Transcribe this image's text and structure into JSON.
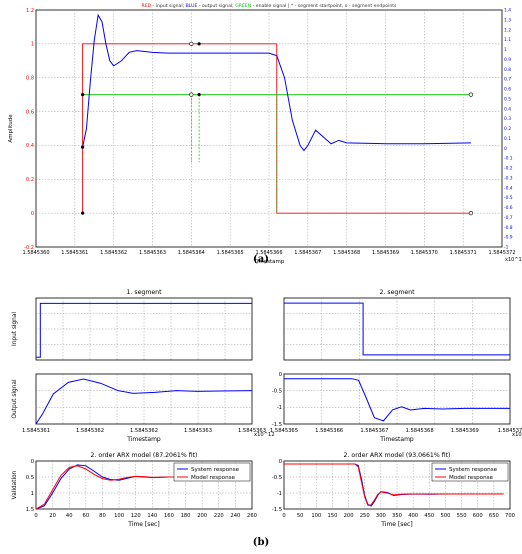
{
  "figure": {
    "label_a": "(a)",
    "label_b": "(b)"
  },
  "chart_data": [
    {
      "id": "a",
      "type": "line",
      "title": "RED - input signal; BLUE - output signal; GREEN - enable signal | * - segment startpoint, o - segment endpoints",
      "title_parts": [
        {
          "text": "RED",
          "color": "#ff0000"
        },
        {
          "text": " - input signal; ",
          "color": "#333333"
        },
        {
          "text": "BLUE",
          "color": "#0000ff"
        },
        {
          "text": " - output signal; ",
          "color": "#333333"
        },
        {
          "text": "GREEN",
          "color": "#00c000"
        },
        {
          "text": " - enable signal | * - segment startpoint, o - segment endpoints",
          "color": "#333333"
        }
      ],
      "xlabel": "Timestamp",
      "ylabel": "Amplitude",
      "x_exponent": "x10^12",
      "xlim": [
        1.584536,
        1.5845372
      ],
      "ylim": [
        -0.2,
        1.2
      ],
      "ylim_right": [
        -1.0,
        1.4
      ],
      "xticks": [
        "1.5845360",
        "1.5845361",
        "1.5845362",
        "1.5845363",
        "1.5845364",
        "1.5845365",
        "1.5845366",
        "1.5845367",
        "1.5845368",
        "1.5845369",
        "1.5845370",
        "1.5845371",
        "1.5845372"
      ],
      "yticks_left": [
        "-0.2",
        "0",
        "0.2",
        "0.4",
        "0.6",
        "0.8",
        "1",
        "1.2"
      ],
      "yticks_right": [
        "-1",
        "-0.9",
        "-0.8",
        "-0.7",
        "-0.6",
        "-0.5",
        "-0.4",
        "-0.3",
        "-0.2",
        "-0.1",
        "0",
        "0.1",
        "0.2",
        "0.3",
        "0.4",
        "0.5",
        "0.6",
        "0.7",
        "0.8",
        "0.9",
        "1",
        "1.1",
        "1.2",
        "1.3",
        "1.4"
      ],
      "grid": true,
      "series": [
        {
          "color": "#ff0000",
          "x": [
            1.58453612,
            1.58453612,
            1.58453662,
            1.58453662,
            1.58453712
          ],
          "y": [
            0,
            1,
            1,
            0,
            0
          ]
        },
        {
          "color": "#00c000",
          "x": [
            1.58453612,
            1.58453712
          ],
          "y": [
            0.7,
            0.7
          ]
        },
        {
          "color": "#0000ff",
          "x": [
            1.58453612,
            1.58453613,
            1.58453614,
            1.58453615,
            1.58453616,
            1.58453617,
            1.58453618,
            1.58453619,
            1.5845362,
            1.58453622,
            1.58453624,
            1.58453626,
            1.58453628,
            1.5845363,
            1.58453634,
            1.5845364,
            1.5845365,
            1.5845366,
            1.58453662,
            1.58453664,
            1.58453666,
            1.58453668,
            1.58453669,
            1.5845367,
            1.58453672,
            1.58453674,
            1.58453676,
            1.58453678,
            1.5845368,
            1.5845369,
            1.584537,
            1.58453712
          ],
          "y": [
            0.39,
            0.5,
            0.78,
            1.02,
            1.17,
            1.13,
            1.0,
            0.9,
            0.87,
            0.9,
            0.95,
            0.96,
            0.955,
            0.95,
            0.945,
            0.945,
            0.945,
            0.945,
            0.93,
            0.8,
            0.55,
            0.4,
            0.37,
            0.4,
            0.49,
            0.45,
            0.41,
            0.43,
            0.415,
            0.41,
            0.41,
            0.415
          ]
        }
      ],
      "markers": {
        "starts": [
          [
            1.58453612,
            0.39
          ],
          [
            1.58453612,
            0.7
          ],
          [
            1.58453612,
            0
          ]
        ],
        "ends": [
          [
            1.5845364,
            0.7
          ],
          [
            1.5845364,
            1.0
          ],
          [
            1.58453712,
            0.7
          ],
          [
            1.58453712,
            0
          ]
        ],
        "starts_seg2": [
          [
            1.58453642,
            1.0
          ],
          [
            1.58453642,
            0.7
          ]
        ]
      }
    },
    {
      "id": "b1-input",
      "type": "line",
      "title": "1. segment",
      "ylabel": "Input signal",
      "ylim": [
        -0.05,
        1.1
      ],
      "series": [
        {
          "color": "#0000ff",
          "x": [
            0,
            0.02,
            0.02,
            1
          ],
          "y": [
            0,
            0,
            1,
            1
          ]
        }
      ]
    },
    {
      "id": "b1-output",
      "type": "line",
      "ylabel": "Output signal",
      "xlabel": "Timestamp",
      "x_exponent": "x10^12",
      "xticks": [
        "1.5845361",
        "1.5845362",
        "1.5845362",
        "1.5845363",
        "1.5845363"
      ],
      "ylim": [
        0,
        1.5
      ],
      "series": [
        {
          "color": "#0000ff",
          "x": [
            0,
            0.03,
            0.08,
            0.15,
            0.22,
            0.3,
            0.38,
            0.45,
            0.55,
            0.65,
            0.75,
            0.85,
            1.0
          ],
          "y": [
            0.0,
            0.3,
            0.9,
            1.25,
            1.35,
            1.22,
            1.0,
            0.92,
            0.95,
            1.0,
            0.98,
            0.99,
            1.0
          ]
        }
      ]
    },
    {
      "id": "b1-validation",
      "type": "line",
      "title": "2. order ARX model (87.2061% fit)",
      "xlabel": "Time [sec]",
      "ylabel": "Validation",
      "xlim": [
        0,
        260
      ],
      "ylim": [
        0,
        1.5
      ],
      "xticks": [
        "0",
        "20",
        "40",
        "60",
        "80",
        "100",
        "120",
        "140",
        "160",
        "180",
        "200",
        "220",
        "240",
        "260"
      ],
      "yticks": [
        "0",
        "0.5",
        "1",
        "1.5"
      ],
      "legend": [
        "System response",
        "Model response"
      ],
      "legend_placement": "top-right",
      "series": [
        {
          "name": "System response",
          "color": "#0000ff",
          "x": [
            0,
            10,
            20,
            30,
            40,
            50,
            60,
            70,
            80,
            90,
            100,
            110,
            120,
            130,
            140,
            160,
            180,
            200,
            220,
            240
          ],
          "y": [
            0,
            0.1,
            0.5,
            0.95,
            1.25,
            1.38,
            1.35,
            1.18,
            1.0,
            0.92,
            0.9,
            0.96,
            1.02,
            1.0,
            0.98,
            1.0,
            1.0,
            0.99,
            1.0,
            1.0
          ]
        },
        {
          "name": "Model response",
          "color": "#ff0000",
          "x": [
            0,
            10,
            20,
            30,
            40,
            50,
            60,
            70,
            80,
            90,
            100,
            110,
            120,
            130,
            140,
            160,
            180,
            200,
            220,
            240
          ],
          "y": [
            0,
            0.15,
            0.6,
            1.05,
            1.3,
            1.35,
            1.25,
            1.08,
            0.95,
            0.9,
            0.93,
            0.99,
            1.02,
            1.01,
            0.99,
            1.0,
            1.0,
            1.0,
            1.0,
            1.0
          ]
        }
      ]
    },
    {
      "id": "b2-input",
      "type": "line",
      "title": "2. segment",
      "ylim": [
        -1.1,
        0.1
      ],
      "series": [
        {
          "color": "#0000ff",
          "x": [
            0,
            0.35,
            0.35,
            1
          ],
          "y": [
            0,
            0,
            -1,
            -1
          ]
        }
      ]
    },
    {
      "id": "b2-output",
      "type": "line",
      "xlabel": "Timestamp",
      "x_exponent": "x10^12",
      "xticks": [
        "1.5845365",
        "1.5845366",
        "1.5845367",
        "1.5845368",
        "1.5845369",
        "1.584537"
      ],
      "yticks": [
        "0",
        "-0.5",
        "-1",
        "-1.5"
      ],
      "ylim": [
        -1.5,
        0.1
      ],
      "series": [
        {
          "color": "#0000ff",
          "x": [
            0,
            0.3,
            0.33,
            0.36,
            0.4,
            0.44,
            0.48,
            0.52,
            0.56,
            0.62,
            0.7,
            0.8,
            0.9,
            1.0
          ],
          "y": [
            -0.05,
            -0.05,
            -0.1,
            -0.6,
            -1.3,
            -1.4,
            -1.05,
            -0.95,
            -1.05,
            -1.0,
            -1.02,
            -1.0,
            -1.0,
            -1.0
          ]
        }
      ]
    },
    {
      "id": "b2-validation",
      "type": "line",
      "title": "2. order ARX model (93.0661% fit)",
      "xlabel": "Time [sec]",
      "xlim": [
        0,
        700
      ],
      "ylim": [
        -1.5,
        0.1
      ],
      "xticks": [
        "0",
        "50",
        "100",
        "150",
        "200",
        "250",
        "300",
        "350",
        "400",
        "450",
        "500",
        "550",
        "600",
        "650",
        "700"
      ],
      "yticks": [
        "0",
        "-0.5",
        "-1",
        "-1.5"
      ],
      "legend": [
        "System response",
        "Model response"
      ],
      "legend_placement": "top-right",
      "series": [
        {
          "name": "System response",
          "color": "#0000ff",
          "x": [
            0,
            220,
            230,
            240,
            250,
            260,
            270,
            280,
            290,
            300,
            320,
            340,
            360,
            400,
            450,
            500,
            550,
            600,
            650,
            680
          ],
          "y": [
            0,
            0,
            -0.05,
            -0.5,
            -1.05,
            -1.35,
            -1.4,
            -1.25,
            -1.05,
            -0.92,
            -0.95,
            -1.05,
            -1.02,
            -1.0,
            -1.01,
            -1.0,
            -1.0,
            -1.0,
            -1.0,
            -1.0
          ]
        },
        {
          "name": "Model response",
          "color": "#ff0000",
          "x": [
            0,
            220,
            230,
            240,
            250,
            260,
            270,
            280,
            290,
            300,
            320,
            340,
            360,
            400,
            450,
            500,
            550,
            600,
            650,
            680
          ],
          "y": [
            0,
            0,
            -0.1,
            -0.6,
            -1.1,
            -1.38,
            -1.36,
            -1.2,
            -1.02,
            -0.93,
            -0.97,
            -1.03,
            -1.01,
            -1.0,
            -1.0,
            -1.0,
            -1.0,
            -1.0,
            -1.0,
            -1.0
          ]
        }
      ]
    }
  ]
}
